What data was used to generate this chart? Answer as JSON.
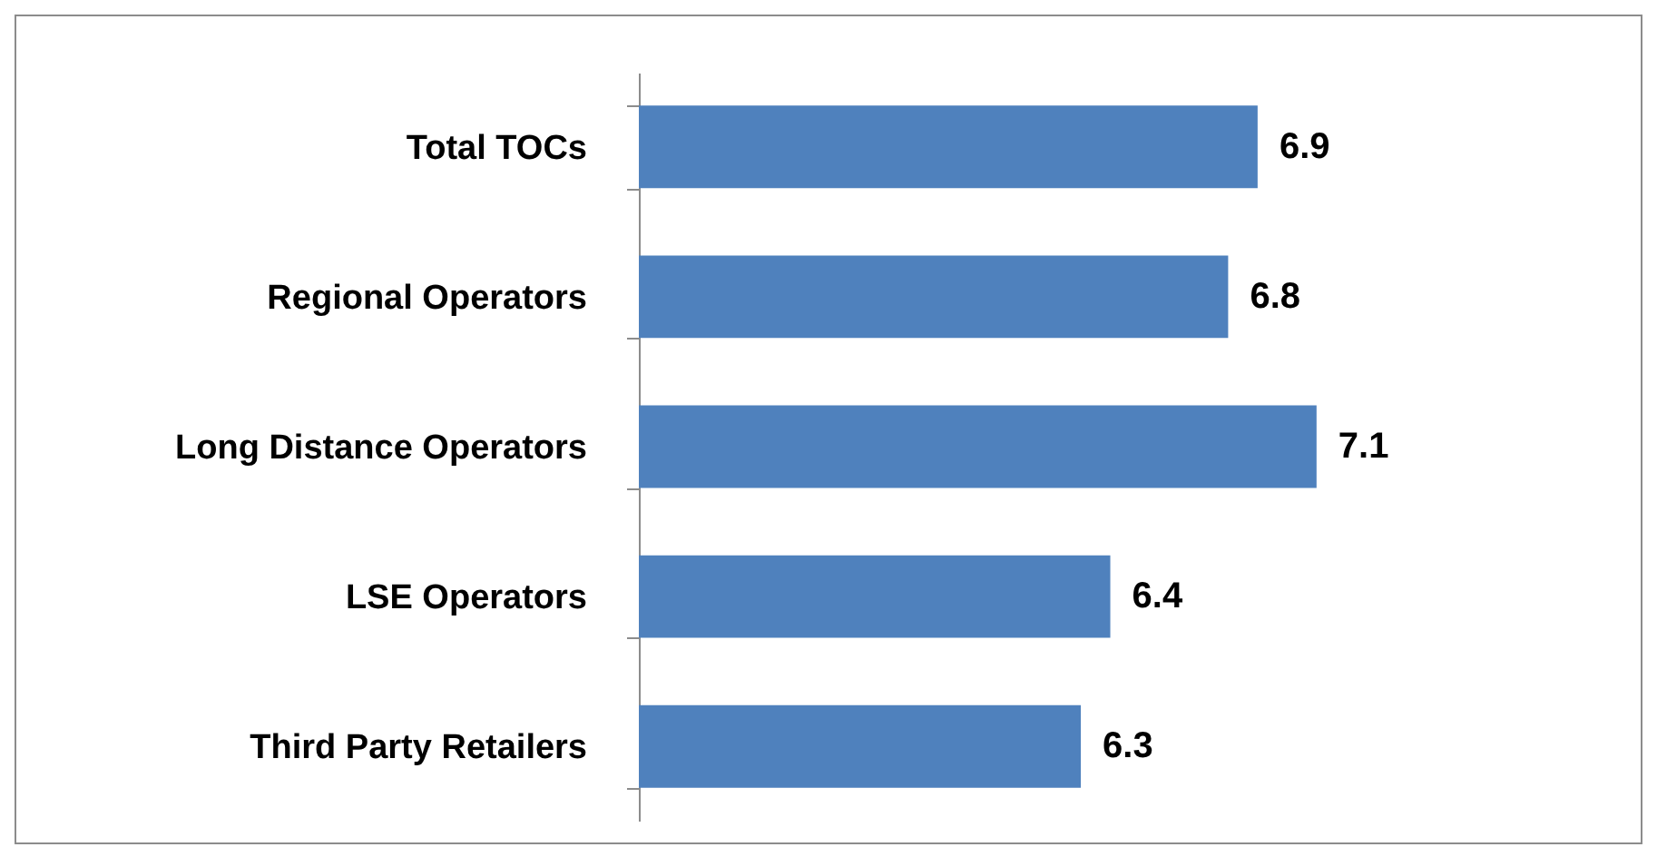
{
  "chart_data": {
    "type": "bar",
    "orientation": "horizontal",
    "categories": [
      "Total TOCs",
      "Regional Operators",
      "Long Distance Operators",
      "LSE Operators",
      "Third Party Retailers"
    ],
    "values": [
      6.9,
      6.8,
      7.1,
      6.4,
      6.3
    ],
    "color": "#4f81bd",
    "xlim": [
      4.8,
      8.2
    ],
    "data_labels": true
  }
}
